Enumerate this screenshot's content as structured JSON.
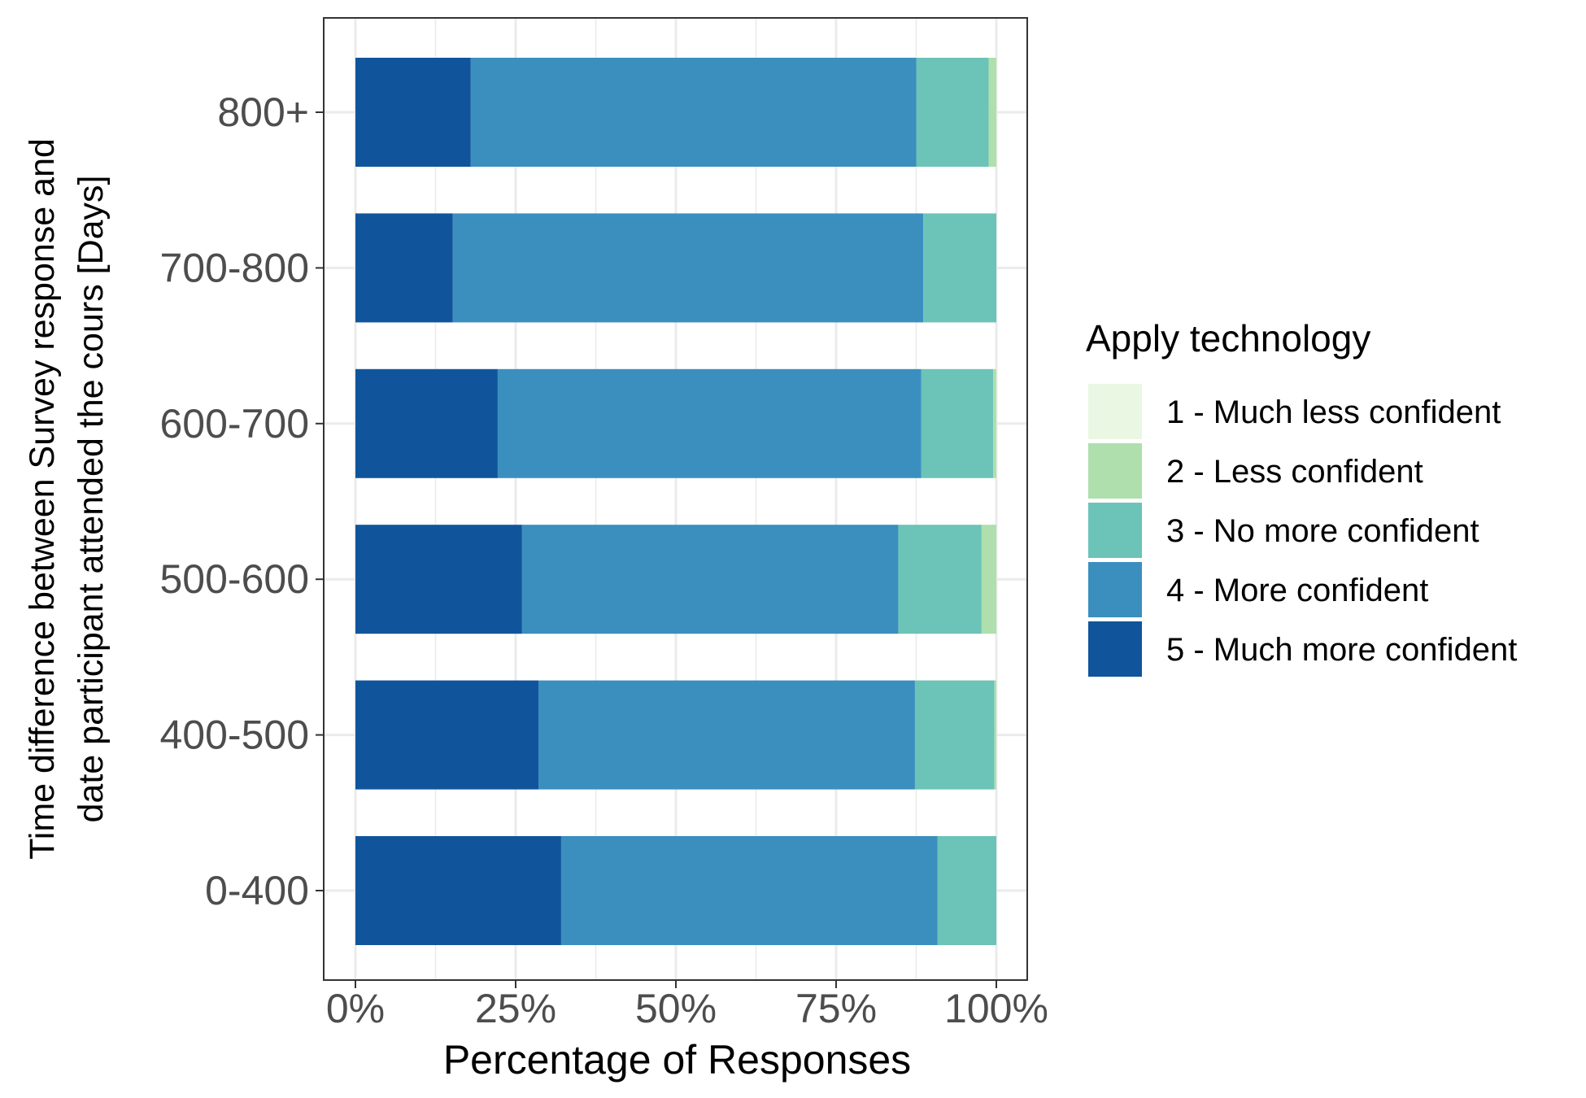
{
  "chart_data": {
    "type": "bar",
    "orientation": "horizontal",
    "stacked": true,
    "xlabel": "Percentage of Responses",
    "ylabel_lines": [
      "Time difference between Survey response and",
      "date participant attended the cours [Days]"
    ],
    "x_ticks": [
      "0%",
      "25%",
      "50%",
      "75%",
      "100%"
    ],
    "xlim": [
      0,
      100
    ],
    "grid": true,
    "legend_title": "Apply technology",
    "legend_position": "right",
    "categories": [
      "800+",
      "700-800",
      "600-700",
      "500-600",
      "400-500",
      "0-400"
    ],
    "series": [
      {
        "name": "5 - Much more confident",
        "color": "#10559c",
        "values": [
          18.0,
          15.2,
          22.2,
          26.0,
          28.6,
          32.1
        ]
      },
      {
        "name": "4 - More confident",
        "color": "#3a8fbf",
        "values": [
          69.5,
          73.4,
          66.1,
          58.7,
          58.7,
          58.7
        ]
      },
      {
        "name": "3 - No more confident",
        "color": "#6cc3b7",
        "values": [
          11.3,
          11.4,
          11.2,
          13.0,
          12.4,
          9.2
        ]
      },
      {
        "name": "2 - Less confident",
        "color": "#aedfad",
        "values": [
          1.2,
          0.0,
          0.5,
          2.3,
          0.3,
          0.0
        ]
      },
      {
        "name": "1 - Much less confident",
        "color": "#eaf7e3",
        "values": [
          0.0,
          0.0,
          0.0,
          0.0,
          0.0,
          0.0
        ]
      }
    ],
    "legend_order": [
      "1 - Much less confident",
      "2 - Less confident",
      "3 - No more confident",
      "4 - More confident",
      "5 - Much more confident"
    ]
  }
}
